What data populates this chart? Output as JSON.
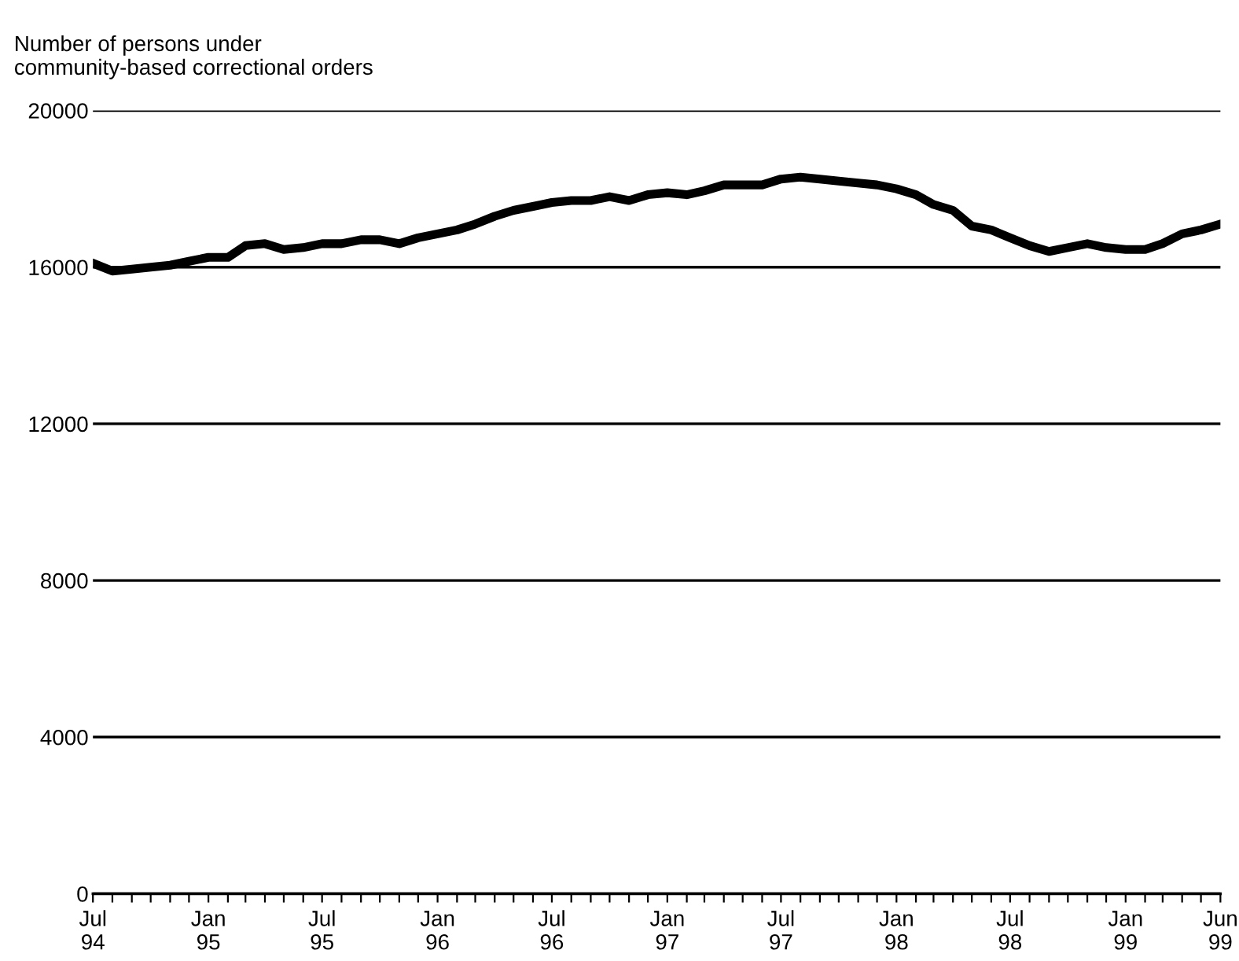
{
  "chart_data": {
    "type": "line",
    "ylabel": "Number of persons under\ncommunity-based correctional orders",
    "x": [
      "1994-07",
      "1994-08",
      "1994-09",
      "1994-10",
      "1994-11",
      "1994-12",
      "1995-01",
      "1995-02",
      "1995-03",
      "1995-04",
      "1995-05",
      "1995-06",
      "1995-07",
      "1995-08",
      "1995-09",
      "1995-10",
      "1995-11",
      "1995-12",
      "1996-01",
      "1996-02",
      "1996-03",
      "1996-04",
      "1996-05",
      "1996-06",
      "1996-07",
      "1996-08",
      "1996-09",
      "1996-10",
      "1996-11",
      "1996-12",
      "1997-01",
      "1997-02",
      "1997-03",
      "1997-04",
      "1997-05",
      "1997-06",
      "1997-07",
      "1997-08",
      "1997-09",
      "1997-10",
      "1997-11",
      "1997-12",
      "1998-01",
      "1998-02",
      "1998-03",
      "1998-04",
      "1998-05",
      "1998-06",
      "1998-07",
      "1998-08",
      "1998-09",
      "1998-10",
      "1998-11",
      "1998-12",
      "1999-01",
      "1999-02",
      "1999-03",
      "1999-04",
      "1999-05",
      "1999-06"
    ],
    "series": [
      {
        "color": "#000000",
        "values": [
          16100,
          15900,
          15950,
          16000,
          16050,
          16150,
          16250,
          16250,
          16550,
          16600,
          16450,
          16500,
          16600,
          16600,
          16700,
          16700,
          16600,
          16750,
          16850,
          16950,
          17100,
          17300,
          17450,
          17550,
          17650,
          17700,
          17700,
          17800,
          17700,
          17850,
          17900,
          17850,
          17950,
          18100,
          18100,
          18100,
          18250,
          18300,
          18250,
          18200,
          18150,
          18100,
          18000,
          17850,
          17600,
          17450,
          17050,
          16950,
          16750,
          16550,
          16400,
          16500,
          16600,
          16500,
          16450,
          16450,
          16600,
          16850,
          16950,
          17100
        ]
      }
    ],
    "xlim": [
      "1994-07",
      "1999-06"
    ],
    "xticks": [
      {
        "value": "1994-07",
        "label": "Jul\n94"
      },
      {
        "value": "1994-08",
        "label": null
      },
      {
        "value": "1994-09",
        "label": null
      },
      {
        "value": "1994-10",
        "label": null
      },
      {
        "value": "1994-11",
        "label": null
      },
      {
        "value": "1994-12",
        "label": null
      },
      {
        "value": "1995-01",
        "label": "Jan\n95"
      },
      {
        "value": "1995-02",
        "label": null
      },
      {
        "value": "1995-03",
        "label": null
      },
      {
        "value": "1995-04",
        "label": null
      },
      {
        "value": "1995-05",
        "label": null
      },
      {
        "value": "1995-06",
        "label": null
      },
      {
        "value": "1995-07",
        "label": "Jul\n95"
      },
      {
        "value": "1995-08",
        "label": null
      },
      {
        "value": "1995-09",
        "label": null
      },
      {
        "value": "1995-10",
        "label": null
      },
      {
        "value": "1995-11",
        "label": null
      },
      {
        "value": "1995-12",
        "label": null
      },
      {
        "value": "1996-01",
        "label": "Jan\n96"
      },
      {
        "value": "1996-02",
        "label": null
      },
      {
        "value": "1996-03",
        "label": null
      },
      {
        "value": "1996-04",
        "label": null
      },
      {
        "value": "1996-05",
        "label": null
      },
      {
        "value": "1996-06",
        "label": null
      },
      {
        "value": "1996-07",
        "label": "Jul\n96"
      },
      {
        "value": "1996-08",
        "label": null
      },
      {
        "value": "1996-09",
        "label": null
      },
      {
        "value": "1996-10",
        "label": null
      },
      {
        "value": "1996-11",
        "label": null
      },
      {
        "value": "1996-12",
        "label": null
      },
      {
        "value": "1997-01",
        "label": "Jan\n97"
      },
      {
        "value": "1997-02",
        "label": null
      },
      {
        "value": "1997-03",
        "label": null
      },
      {
        "value": "1997-04",
        "label": null
      },
      {
        "value": "1997-05",
        "label": null
      },
      {
        "value": "1997-06",
        "label": null
      },
      {
        "value": "1997-07",
        "label": "Jul\n97"
      },
      {
        "value": "1997-08",
        "label": null
      },
      {
        "value": "1997-09",
        "label": null
      },
      {
        "value": "1997-10",
        "label": null
      },
      {
        "value": "1997-11",
        "label": null
      },
      {
        "value": "1997-12",
        "label": null
      },
      {
        "value": "1998-01",
        "label": "Jan\n98"
      },
      {
        "value": "1998-02",
        "label": null
      },
      {
        "value": "1998-03",
        "label": null
      },
      {
        "value": "1998-04",
        "label": null
      },
      {
        "value": "1998-05",
        "label": null
      },
      {
        "value": "1998-06",
        "label": null
      },
      {
        "value": "1998-07",
        "label": "Jul\n98"
      },
      {
        "value": "1998-08",
        "label": null
      },
      {
        "value": "1998-09",
        "label": null
      },
      {
        "value": "1998-10",
        "label": null
      },
      {
        "value": "1998-11",
        "label": null
      },
      {
        "value": "1998-12",
        "label": null
      },
      {
        "value": "1999-01",
        "label": "Jan\n99"
      },
      {
        "value": "1999-02",
        "label": null
      },
      {
        "value": "1999-03",
        "label": null
      },
      {
        "value": "1999-04",
        "label": null
      },
      {
        "value": "1999-05",
        "label": null
      },
      {
        "value": "1999-06",
        "label": "Jun\n99"
      }
    ],
    "ylim": [
      0,
      20000
    ],
    "yticks": [
      0,
      4000,
      8000,
      12000,
      16000,
      20000
    ],
    "grid": "y",
    "legend": false,
    "marker": "none",
    "line_style": "solid"
  }
}
